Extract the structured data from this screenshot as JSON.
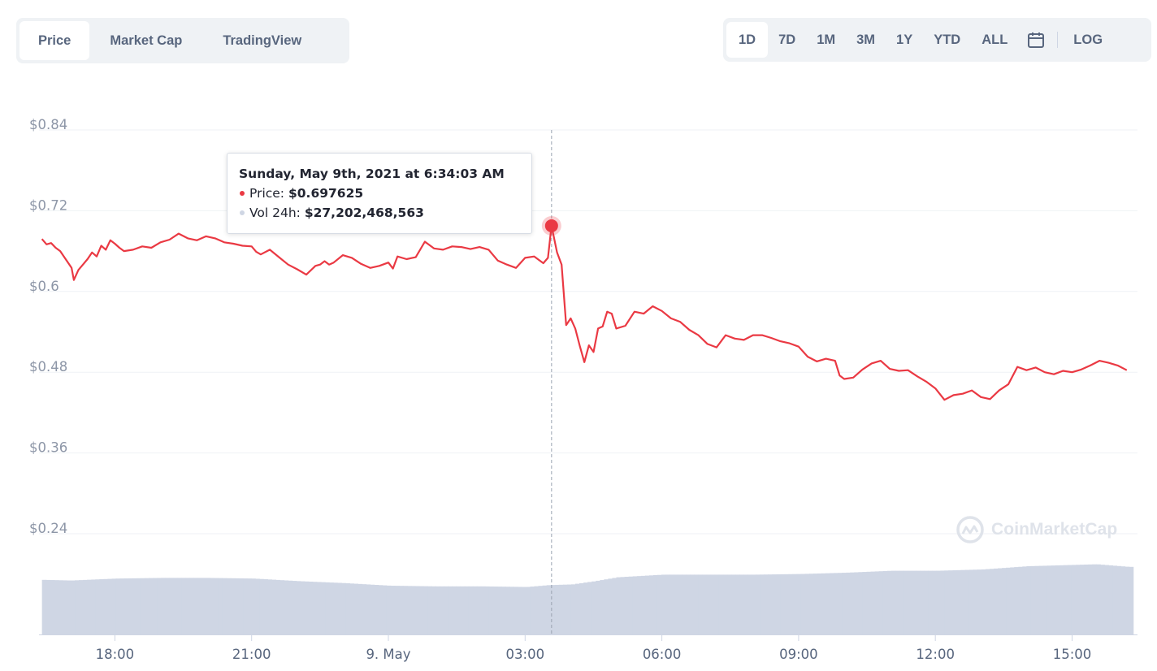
{
  "tabs": [
    {
      "label": "Price",
      "active": true
    },
    {
      "label": "Market Cap",
      "active": false
    },
    {
      "label": "TradingView",
      "active": false
    }
  ],
  "ranges": [
    {
      "label": "1D",
      "active": true
    },
    {
      "label": "7D",
      "active": false
    },
    {
      "label": "1M",
      "active": false
    },
    {
      "label": "3M",
      "active": false
    },
    {
      "label": "1Y",
      "active": false
    },
    {
      "label": "YTD",
      "active": false
    },
    {
      "label": "ALL",
      "active": false
    }
  ],
  "calendar_icon": "calendar-icon",
  "log_label": "LOG",
  "tooltip": {
    "title": "Sunday, May 9th, 2021 at 6:34:03 AM",
    "price_label": "Price:",
    "price_value": "$0.697625",
    "vol_label": "Vol 24h:",
    "vol_value": "$27,202,468,563"
  },
  "watermark": "CoinMarketCap",
  "colors": {
    "price_line": "#ea3943",
    "volume_fill": "#cfd6e4",
    "grid": "#eff2f5",
    "text": "#58667e",
    "vol_dot": "#cfd6e4"
  },
  "chart_data": {
    "type": "line",
    "y_ticks": [
      "$0.84",
      "$0.72",
      "$0.6",
      "$0.48",
      "$0.36",
      "$0.24"
    ],
    "y_tick_values": [
      0.84,
      0.72,
      0.6,
      0.48,
      0.36,
      0.24
    ],
    "ylim": [
      0.24,
      0.84
    ],
    "x_ticks": [
      "18:00",
      "21:00",
      "9. May",
      "03:00",
      "06:00",
      "09:00",
      "12:00",
      "15:00"
    ],
    "x_tick_hours": [
      -6,
      -3,
      0,
      3,
      6,
      9,
      12,
      15
    ],
    "xlim_hours": [
      -7.6,
      16.3
    ],
    "highlight": {
      "hour": 3.58,
      "value": 0.6976
    },
    "series": [
      {
        "x": [
          -7.6,
          -7.5,
          -7.4,
          -7.3,
          -7.2,
          -7.1,
          -6.95,
          -6.9,
          -6.8,
          -6.7,
          -6.6,
          -6.5,
          -6.4,
          -6.3,
          -6.2,
          -6.1,
          -6.0,
          -5.9,
          -5.8,
          -5.6,
          -5.4,
          -5.2,
          -5.0,
          -4.8,
          -4.6,
          -4.4,
          -4.2,
          -4.0,
          -3.8,
          -3.6,
          -3.4,
          -3.2,
          -3.0,
          -2.9,
          -2.8,
          -2.6,
          -2.4,
          -2.2,
          -2.0,
          -1.8,
          -1.6,
          -1.5,
          -1.4,
          -1.3,
          -1.2,
          -1.0,
          -0.8,
          -0.6,
          -0.4,
          -0.2,
          0.0,
          0.1,
          0.2,
          0.4,
          0.6,
          0.8,
          1.0,
          1.2,
          1.4,
          1.6,
          1.8,
          2.0,
          2.2,
          2.4,
          2.6,
          2.8,
          3.0,
          3.2,
          3.4,
          3.5,
          3.58,
          3.7,
          3.8,
          3.9,
          4.0,
          4.1,
          4.2,
          4.3,
          4.4,
          4.5,
          4.6,
          4.7,
          4.8,
          4.9,
          5.0,
          5.2,
          5.4,
          5.6,
          5.8,
          6.0,
          6.2,
          6.4,
          6.6,
          6.8,
          7.0,
          7.2,
          7.4,
          7.6,
          7.8,
          8.0,
          8.2,
          8.4,
          8.6,
          8.8,
          9.0,
          9.2,
          9.4,
          9.6,
          9.8,
          9.9,
          10.0,
          10.2,
          10.4,
          10.6,
          10.8,
          11.0,
          11.2,
          11.4,
          11.6,
          11.8,
          12.0,
          12.2,
          12.4,
          12.6,
          12.8,
          13.0,
          13.2,
          13.4,
          13.6,
          13.8,
          14.0,
          14.2,
          14.4,
          14.6,
          14.8,
          15.0,
          15.2,
          15.4,
          15.6,
          15.8,
          16.0,
          16.2
        ],
        "y": [
          0.678,
          0.67,
          0.672,
          0.665,
          0.66,
          0.65,
          0.635,
          0.617,
          0.632,
          0.64,
          0.648,
          0.658,
          0.652,
          0.668,
          0.662,
          0.676,
          0.671,
          0.665,
          0.66,
          0.662,
          0.667,
          0.665,
          0.673,
          0.677,
          0.686,
          0.679,
          0.676,
          0.682,
          0.679,
          0.673,
          0.671,
          0.668,
          0.667,
          0.659,
          0.655,
          0.662,
          0.651,
          0.64,
          0.633,
          0.625,
          0.638,
          0.64,
          0.645,
          0.64,
          0.643,
          0.654,
          0.65,
          0.641,
          0.635,
          0.638,
          0.643,
          0.634,
          0.652,
          0.648,
          0.651,
          0.674,
          0.664,
          0.662,
          0.667,
          0.666,
          0.663,
          0.666,
          0.662,
          0.646,
          0.64,
          0.635,
          0.65,
          0.652,
          0.642,
          0.65,
          0.6976,
          0.658,
          0.64,
          0.55,
          0.56,
          0.545,
          0.519,
          0.495,
          0.52,
          0.51,
          0.545,
          0.548,
          0.57,
          0.567,
          0.545,
          0.549,
          0.57,
          0.567,
          0.578,
          0.571,
          0.56,
          0.555,
          0.543,
          0.535,
          0.522,
          0.517,
          0.535,
          0.53,
          0.528,
          0.535,
          0.535,
          0.531,
          0.526,
          0.523,
          0.518,
          0.503,
          0.496,
          0.5,
          0.497,
          0.475,
          0.47,
          0.472,
          0.484,
          0.493,
          0.497,
          0.485,
          0.482,
          0.483,
          0.474,
          0.466,
          0.456,
          0.439,
          0.446,
          0.448,
          0.453,
          0.443,
          0.44,
          0.453,
          0.462,
          0.488,
          0.483,
          0.487,
          0.48,
          0.477,
          0.482,
          0.48,
          0.484,
          0.49,
          0.497,
          0.494,
          0.49,
          0.483
        ]
      }
    ],
    "volume": {
      "x": [
        -7.6,
        -7.0,
        -6.0,
        -5.0,
        -4.0,
        -3.0,
        -2.0,
        -1.0,
        0.0,
        1.0,
        2.0,
        3.0,
        3.5,
        4.0,
        4.5,
        5.0,
        6.0,
        7.0,
        8.0,
        9.0,
        10.0,
        11.0,
        12.0,
        13.0,
        14.0,
        15.0,
        15.5,
        16.2
      ],
      "rel_height": [
        0.84,
        0.83,
        0.86,
        0.87,
        0.87,
        0.86,
        0.82,
        0.79,
        0.75,
        0.74,
        0.74,
        0.73,
        0.76,
        0.77,
        0.82,
        0.88,
        0.92,
        0.92,
        0.92,
        0.93,
        0.95,
        0.98,
        0.98,
        1.0,
        1.05,
        1.07,
        1.08,
        1.04
      ]
    }
  }
}
